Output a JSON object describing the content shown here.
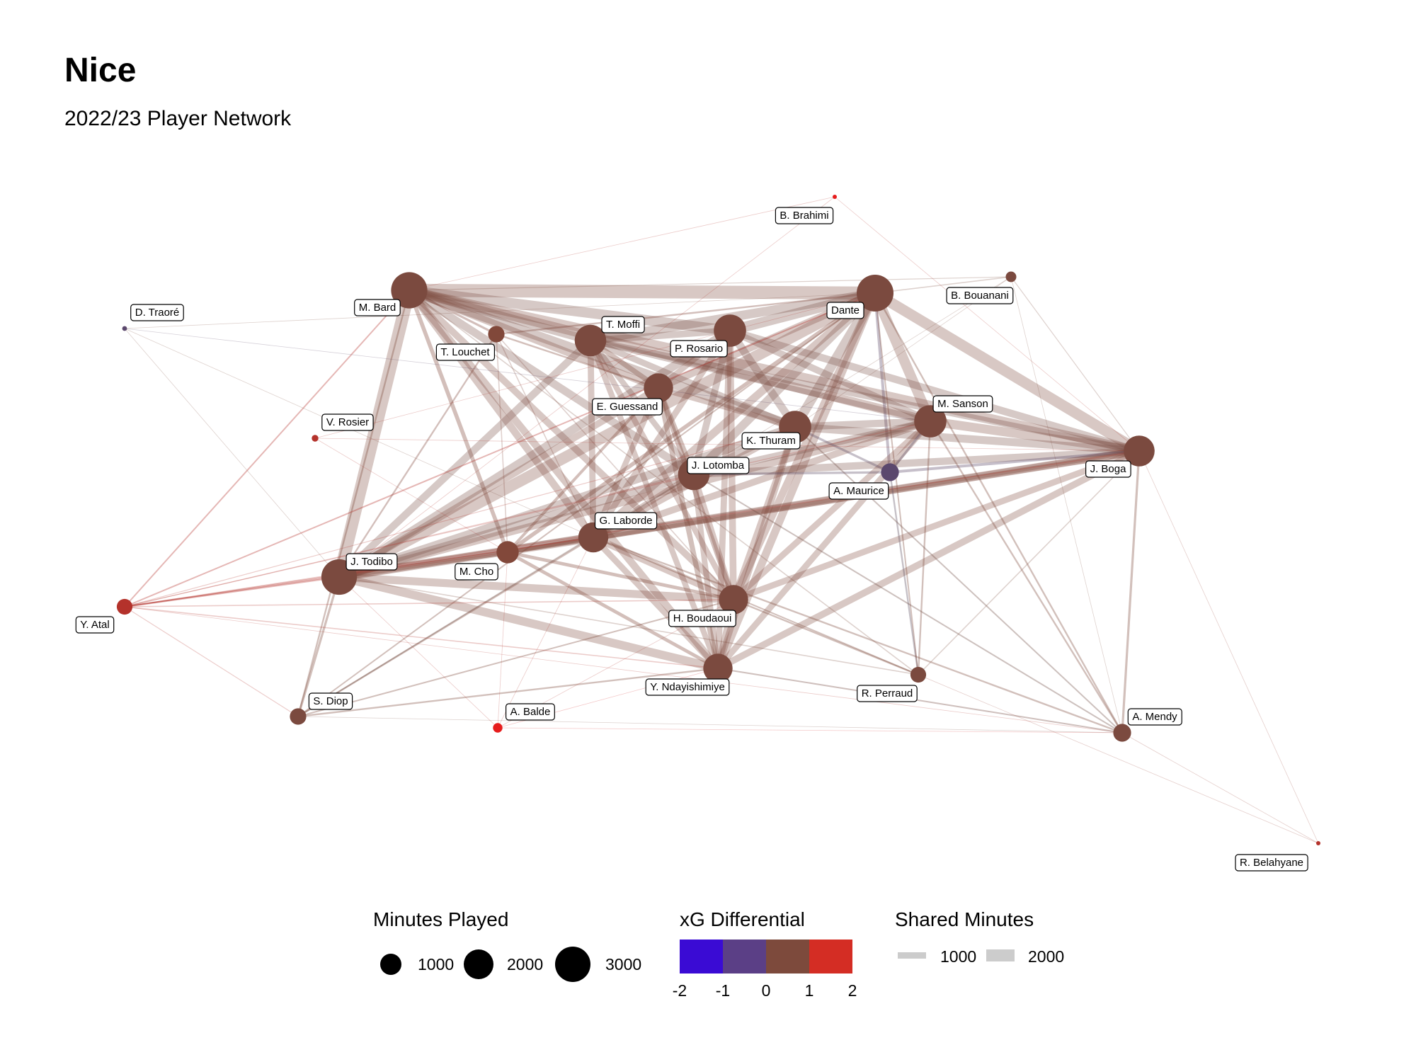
{
  "header": {
    "title": "Nice",
    "subtitle": "2022/23 Player Network"
  },
  "chart_data": {
    "type": "network",
    "nodes": [
      {
        "name": "B. Brahimi",
        "minutes": 20,
        "xg_diff": 2.0
      },
      {
        "name": "M. Bard",
        "minutes": 2900,
        "xg_diff": 0.4
      },
      {
        "name": "Dante",
        "minutes": 3000,
        "xg_diff": 0.6
      },
      {
        "name": "B. Bouanani",
        "minutes": 250,
        "xg_diff": 0.5
      },
      {
        "name": "D. Traoré",
        "minutes": 50,
        "xg_diff": -0.5
      },
      {
        "name": "T. Moffi",
        "minutes": 2200,
        "xg_diff": 0.3
      },
      {
        "name": "P. Rosario",
        "minutes": 2300,
        "xg_diff": 0.4
      },
      {
        "name": "T. Louchet",
        "minutes": 600,
        "xg_diff": 0.9
      },
      {
        "name": "E. Guessand",
        "minutes": 1900,
        "xg_diff": 0.6
      },
      {
        "name": "M. Sanson",
        "minutes": 2300,
        "xg_diff": 0.5
      },
      {
        "name": "V. Rosier",
        "minutes": 100,
        "xg_diff": 1.5
      },
      {
        "name": "K. Thuram",
        "minutes": 2300,
        "xg_diff": 0.4
      },
      {
        "name": "J. Lotomba",
        "minutes": 2200,
        "xg_diff": 0.4
      },
      {
        "name": "J. Boga",
        "minutes": 2100,
        "xg_diff": 0.5
      },
      {
        "name": "A. Maurice",
        "minutes": 700,
        "xg_diff": -0.5
      },
      {
        "name": "G. Laborde",
        "minutes": 2000,
        "xg_diff": 0.5
      },
      {
        "name": "J. Todibo",
        "minutes": 2800,
        "xg_diff": 0.5
      },
      {
        "name": "M. Cho",
        "minutes": 1100,
        "xg_diff": 1.0
      },
      {
        "name": "Y. Atal",
        "minutes": 550,
        "xg_diff": 1.5
      },
      {
        "name": "H. Boudaoui",
        "minutes": 1900,
        "xg_diff": 0.8
      },
      {
        "name": "Y. Ndayishimiye",
        "minutes": 1900,
        "xg_diff": 0.6
      },
      {
        "name": "R. Perraud",
        "minutes": 550,
        "xg_diff": 0.5
      },
      {
        "name": "S. Diop",
        "minutes": 600,
        "xg_diff": 0.6
      },
      {
        "name": "A. Balde",
        "minutes": 200,
        "xg_diff": 2.0
      },
      {
        "name": "A. Mendy",
        "minutes": 700,
        "xg_diff": 0.5
      },
      {
        "name": "R. Belahyane",
        "minutes": 40,
        "xg_diff": 1.5
      }
    ],
    "edges": [
      [
        "M. Bard",
        "Dante",
        2300,
        0.5
      ],
      [
        "M. Bard",
        "J. Todibo",
        2200,
        0.5
      ],
      [
        "M. Bard",
        "T. Moffi",
        1500,
        0.4
      ],
      [
        "M. Bard",
        "P. Rosario",
        1800,
        0.4
      ],
      [
        "M. Bard",
        "K. Thuram",
        1700,
        0.4
      ],
      [
        "M. Bard",
        "M. Sanson",
        1600,
        0.5
      ],
      [
        "M. Bard",
        "J. Boga",
        1500,
        0.5
      ],
      [
        "M. Bard",
        "E. Guessand",
        1300,
        0.6
      ],
      [
        "M. Bard",
        "J. Lotomba",
        1400,
        0.4
      ],
      [
        "M. Bard",
        "G. Laborde",
        1300,
        0.5
      ],
      [
        "M. Bard",
        "H. Boudaoui",
        1200,
        0.7
      ],
      [
        "M. Bard",
        "Y. Ndayishimiye",
        1300,
        0.5
      ],
      [
        "M. Bard",
        "M. Cho",
        700,
        0.9
      ],
      [
        "M. Bard",
        "T. Louchet",
        400,
        0.8
      ],
      [
        "Dante",
        "J. Boga",
        1900,
        0.5
      ],
      [
        "Dante",
        "M. Sanson",
        1800,
        0.5
      ],
      [
        "Dante",
        "J. Todibo",
        2000,
        0.5
      ],
      [
        "Dante",
        "P. Rosario",
        1800,
        0.4
      ],
      [
        "Dante",
        "K. Thuram",
        1700,
        0.4
      ],
      [
        "Dante",
        "T. Moffi",
        1600,
        0.4
      ],
      [
        "Dante",
        "J. Lotomba",
        1500,
        0.4
      ],
      [
        "Dante",
        "G. Laborde",
        1400,
        0.5
      ],
      [
        "Dante",
        "H. Boudaoui",
        1300,
        0.8
      ],
      [
        "Dante",
        "Y. Ndayishimiye",
        1400,
        0.6
      ],
      [
        "Dante",
        "E. Guessand",
        1300,
        0.6
      ],
      [
        "Dante",
        "A. Maurice",
        500,
        -0.4
      ],
      [
        "Dante",
        "M. Cho",
        700,
        1.0
      ],
      [
        "Dante",
        "B. Bouanani",
        200,
        0.5
      ],
      [
        "J. Todibo",
        "G. Laborde",
        1600,
        0.5
      ],
      [
        "J. Todibo",
        "Y. Ndayishimiye",
        1500,
        0.6
      ],
      [
        "J. Todibo",
        "H. Boudaoui",
        1400,
        0.7
      ],
      [
        "J. Todibo",
        "J. Lotomba",
        1500,
        0.4
      ],
      [
        "J. Todibo",
        "M. Sanson",
        1300,
        0.5
      ],
      [
        "J. Todibo",
        "J. Boga",
        1400,
        0.5
      ],
      [
        "J. Todibo",
        "K. Thuram",
        1500,
        0.4
      ],
      [
        "J. Todibo",
        "P. Rosario",
        1500,
        0.4
      ],
      [
        "J. Todibo",
        "T. Moffi",
        1300,
        0.4
      ],
      [
        "J. Todibo",
        "E. Guessand",
        1200,
        0.6
      ],
      [
        "J. Todibo",
        "M. Cho",
        800,
        1.0
      ],
      [
        "J. Todibo",
        "S. Diop",
        400,
        0.6
      ],
      [
        "J. Todibo",
        "Y. Atal",
        300,
        1.5
      ],
      [
        "J. Boga",
        "M. Sanson",
        1600,
        0.5
      ],
      [
        "J. Boga",
        "K. Thuram",
        1400,
        0.4
      ],
      [
        "J. Boga",
        "G. Laborde",
        1300,
        0.5
      ],
      [
        "J. Boga",
        "J. Lotomba",
        1300,
        0.4
      ],
      [
        "J. Boga",
        "Y. Ndayishimiye",
        1200,
        0.6
      ],
      [
        "J. Boga",
        "H. Boudaoui",
        1100,
        0.8
      ],
      [
        "J. Boga",
        "P. Rosario",
        1300,
        0.4
      ],
      [
        "J. Boga",
        "T. Moffi",
        1100,
        0.4
      ],
      [
        "J. Boga",
        "A. Mendy",
        400,
        0.5
      ],
      [
        "J. Boga",
        "A. Maurice",
        500,
        -0.4
      ],
      [
        "J. Boga",
        "M. Cho",
        700,
        0.9
      ],
      [
        "M. Sanson",
        "K. Thuram",
        1300,
        0.4
      ],
      [
        "M. Sanson",
        "G. Laborde",
        1200,
        0.5
      ],
      [
        "M. Sanson",
        "J. Lotomba",
        1200,
        0.4
      ],
      [
        "M. Sanson",
        "P. Rosario",
        1200,
        0.4
      ],
      [
        "M. Sanson",
        "H. Boudaoui",
        1100,
        0.8
      ],
      [
        "M. Sanson",
        "Y. Ndayishimiye",
        1100,
        0.6
      ],
      [
        "M. Sanson",
        "T. Moffi",
        1000,
        0.4
      ],
      [
        "M. Sanson",
        "R. Perraud",
        300,
        0.5
      ],
      [
        "M. Sanson",
        "A. Mendy",
        300,
        0.5
      ],
      [
        "P. Rosario",
        "K. Thuram",
        1400,
        0.4
      ],
      [
        "P. Rosario",
        "T. Moffi",
        1200,
        0.4
      ],
      [
        "P. Rosario",
        "H. Boudaoui",
        1200,
        0.8
      ],
      [
        "P. Rosario",
        "G. Laborde",
        1100,
        0.5
      ],
      [
        "P. Rosario",
        "J. Lotomba",
        1200,
        0.4
      ],
      [
        "P. Rosario",
        "Y. Ndayishimiye",
        1100,
        0.6
      ],
      [
        "P. Rosario",
        "E. Guessand",
        1000,
        0.6
      ],
      [
        "T. Moffi",
        "G. Laborde",
        1100,
        0.5
      ],
      [
        "T. Moffi",
        "K. Thuram",
        1100,
        0.4
      ],
      [
        "T. Moffi",
        "J. Lotomba",
        1000,
        0.4
      ],
      [
        "T. Moffi",
        "H. Boudaoui",
        1000,
        0.8
      ],
      [
        "T. Moffi",
        "Y. Ndayishimiye",
        1000,
        0.6
      ],
      [
        "T. Moffi",
        "E. Guessand",
        900,
        0.6
      ],
      [
        "K. Thuram",
        "J. Lotomba",
        1200,
        0.4
      ],
      [
        "K. Thuram",
        "G. Laborde",
        1100,
        0.5
      ],
      [
        "K. Thuram",
        "H. Boudaoui",
        1100,
        0.8
      ],
      [
        "K. Thuram",
        "Y. Ndayishimiye",
        1100,
        0.6
      ],
      [
        "K. Thuram",
        "E. Guessand",
        1000,
        0.6
      ],
      [
        "J. Lotomba",
        "G. Laborde",
        1100,
        0.5
      ],
      [
        "J. Lotomba",
        "H. Boudaoui",
        1000,
        0.8
      ],
      [
        "J. Lotomba",
        "Y. Ndayishimiye",
        1000,
        0.6
      ],
      [
        "J. Lotomba",
        "E. Guessand",
        900,
        0.6
      ],
      [
        "G. Laborde",
        "H. Boudaoui",
        1200,
        0.8
      ],
      [
        "G. Laborde",
        "Y. Ndayishimiye",
        1100,
        0.6
      ],
      [
        "G. Laborde",
        "E. Guessand",
        1000,
        0.6
      ],
      [
        "G. Laborde",
        "M. Cho",
        700,
        1.0
      ],
      [
        "H. Boudaoui",
        "Y. Ndayishimiye",
        1100,
        0.7
      ],
      [
        "H. Boudaoui",
        "E. Guessand",
        900,
        0.7
      ],
      [
        "H. Boudaoui",
        "M. Cho",
        600,
        1.0
      ],
      [
        "H. Boudaoui",
        "R. Perraud",
        300,
        0.6
      ],
      [
        "Y. Ndayishimiye",
        "E. Guessand",
        900,
        0.6
      ],
      [
        "Y. Ndayishimiye",
        "M. Cho",
        600,
        1.0
      ],
      [
        "Y. Ndayishimiye",
        "S. Diop",
        300,
        0.6
      ],
      [
        "Y. Ndayishimiye",
        "A. Balde",
        100,
        1.8
      ],
      [
        "E. Guessand",
        "M. Cho",
        500,
        1.0
      ],
      [
        "E. Guessand",
        "T. Louchet",
        300,
        0.9
      ],
      [
        "A. Maurice",
        "K. Thuram",
        400,
        -0.3
      ],
      [
        "A. Maurice",
        "R. Perraud",
        300,
        -0.2
      ],
      [
        "A. Maurice",
        "J. Lotomba",
        400,
        -0.3
      ],
      [
        "A. Maurice",
        "M. Sanson",
        400,
        -0.3
      ],
      [
        "S. Diop",
        "M. Bard",
        300,
        0.6
      ],
      [
        "S. Diop",
        "G. Laborde",
        300,
        0.6
      ],
      [
        "S. Diop",
        "J. Lotomba",
        250,
        0.3
      ],
      [
        "S. Diop",
        "H. Boudaoui",
        250,
        0.5
      ],
      [
        "S. Diop",
        "Dante",
        250,
        0.5
      ],
      [
        "S. Diop",
        "Y. Atal",
        150,
        1.5
      ],
      [
        "Y. Atal",
        "M. Bard",
        250,
        1.5
      ],
      [
        "Y. Atal",
        "Dante",
        250,
        1.5
      ],
      [
        "Y. Atal",
        "J. Boga",
        200,
        1.5
      ],
      [
        "Y. Atal",
        "G. Laborde",
        250,
        1.5
      ],
      [
        "Y. Atal",
        "H. Boudaoui",
        200,
        1.5
      ],
      [
        "Y. Atal",
        "Y. Ndayishimiye",
        200,
        1.5
      ],
      [
        "Y. Atal",
        "M. Sanson",
        150,
        1.5
      ],
      [
        "Y. Atal",
        "K. Thuram",
        150,
        1.5
      ],
      [
        "Y. Atal",
        "J. Lotomba",
        150,
        1.5
      ],
      [
        "Y. Atal",
        "M. Cho",
        150,
        1.5
      ],
      [
        "Y. Atal",
        "A. Mendy",
        100,
        1.5
      ],
      [
        "A. Mendy",
        "Dante",
        300,
        0.5
      ],
      [
        "A. Mendy",
        "G. Laborde",
        300,
        0.5
      ],
      [
        "A. Mendy",
        "Y. Ndayishimiye",
        250,
        0.4
      ],
      [
        "A. Mendy",
        "K. Thuram",
        250,
        0.3
      ],
      [
        "A. Mendy",
        "J. Lotomba",
        250,
        0.3
      ],
      [
        "A. Mendy",
        "A. Balde",
        80,
        1.8
      ],
      [
        "A. Mendy",
        "S. Diop",
        100,
        0.4
      ],
      [
        "A. Mendy",
        "R. Belahyane",
        40,
        1.2
      ],
      [
        "R. Perraud",
        "Dante",
        250,
        0.5
      ],
      [
        "R. Perraud",
        "G. Laborde",
        250,
        0.5
      ],
      [
        "R. Perraud",
        "J. Todibo",
        200,
        0.5
      ],
      [
        "R. Perraud",
        "M. Bard",
        200,
        0.5
      ],
      [
        "R. Perraud",
        "J. Boga",
        200,
        0.5
      ],
      [
        "B. Bouanani",
        "M. Bard",
        150,
        0.5
      ],
      [
        "B. Bouanani",
        "J. Boga",
        150,
        0.5
      ],
      [
        "B. Bouanani",
        "K. Thuram",
        100,
        0.5
      ],
      [
        "B. Bouanani",
        "G. Laborde",
        100,
        0.5
      ],
      [
        "B. Bouanani",
        "A. Mendy",
        80,
        0.5
      ],
      [
        "T. Louchet",
        "J. Todibo",
        300,
        0.8
      ],
      [
        "T. Louchet",
        "Dante",
        300,
        0.8
      ],
      [
        "T. Louchet",
        "M. Cho",
        200,
        1.0
      ],
      [
        "T. Louchet",
        "G. Laborde",
        200,
        0.8
      ],
      [
        "T. Louchet",
        "H. Boudaoui",
        200,
        0.8
      ],
      [
        "V. Rosier",
        "M. Cho",
        80,
        1.5
      ],
      [
        "V. Rosier",
        "Dante",
        80,
        1.5
      ],
      [
        "V. Rosier",
        "J. Boga",
        60,
        1.5
      ],
      [
        "D. Traoré",
        "M. Sanson",
        40,
        -0.4
      ],
      [
        "D. Traoré",
        "G. Laborde",
        40,
        0.5
      ],
      [
        "D. Traoré",
        "Dante",
        40,
        0.5
      ],
      [
        "D. Traoré",
        "J. Todibo",
        40,
        0.5
      ],
      [
        "B. Brahimi",
        "M. Bard",
        20,
        1.5
      ],
      [
        "B. Brahimi",
        "J. Boga",
        20,
        1.5
      ],
      [
        "B. Brahimi",
        "J. Todibo",
        20,
        1.5
      ],
      [
        "A. Balde",
        "J. Todibo",
        80,
        1.5
      ],
      [
        "A. Balde",
        "H. Boudaoui",
        80,
        1.5
      ],
      [
        "A. Balde",
        "G. Laborde",
        80,
        1.5
      ],
      [
        "A. Balde",
        "M. Cho",
        60,
        1.5
      ],
      [
        "R. Belahyane",
        "J. Boga",
        30,
        1.2
      ],
      [
        "R. Belahyane",
        "R. Perraud",
        30,
        1.2
      ]
    ],
    "legend": {
      "minutes": {
        "title": "Minutes Played",
        "values": [
          1000,
          2000,
          3000
        ],
        "labels": [
          "1000",
          "2000",
          "3000"
        ]
      },
      "xg": {
        "title": "xG Differential",
        "ticks": [
          "-2",
          "-1",
          "0",
          "1",
          "2"
        ],
        "colors": [
          "#3a0bd4",
          "#5b3f86",
          "#7d4a3c",
          "#d42d24"
        ]
      },
      "shared": {
        "title": "Shared Minutes",
        "values": [
          1000,
          2000
        ],
        "labels": [
          "1000",
          "2000"
        ]
      }
    }
  }
}
